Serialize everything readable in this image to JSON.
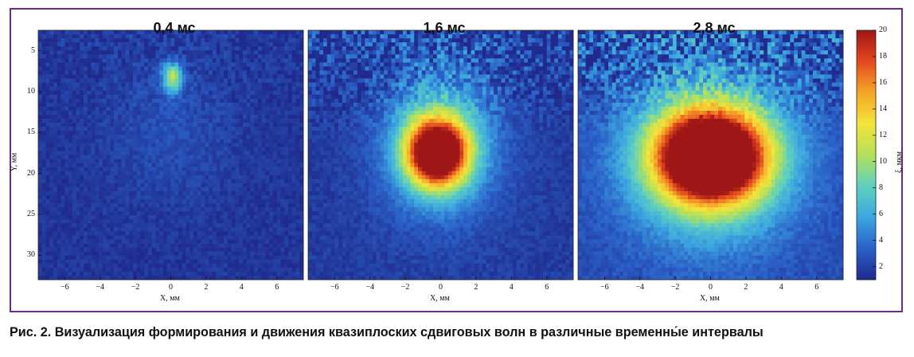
{
  "figure": {
    "caption": "Рис. 2. Визуализация формирования и движения квазиплоских сдвиговых волн в различные временны́е интервалы"
  },
  "chart_data": [
    {
      "type": "heatmap",
      "title": "0,4 мс",
      "xlabel": "X, мм",
      "ylabel": "Y, мм",
      "xlim": [
        -7.5,
        7.5
      ],
      "ylim": [
        33,
        2.5
      ],
      "x_ticks": [
        -6,
        -4,
        -2,
        0,
        2,
        4,
        6
      ],
      "y_ticks": [
        5,
        10,
        15,
        20,
        25,
        30
      ],
      "field": {
        "background": 1.5,
        "peak": 8.5,
        "center_x": 0.1,
        "center_y": 8.3,
        "spread_x": 0.55,
        "spread_y": 1.7,
        "halo": 1.2,
        "halo_spread_x": 3.5,
        "halo_spread_y": 9,
        "halo_center_y": 14
      }
    },
    {
      "type": "heatmap",
      "title": "1,6 мс",
      "xlabel": "X, мм",
      "xlim": [
        -7.5,
        7.5
      ],
      "ylim": [
        33,
        2.5
      ],
      "x_ticks": [
        -6,
        -4,
        -2,
        0,
        2,
        4,
        6
      ],
      "field": {
        "background": 1.8,
        "peak": 22,
        "center_x": -0.2,
        "center_y": 17.5,
        "spread_x": 1.6,
        "spread_y": 3.8,
        "halo": 6,
        "halo_spread_x": 3.2,
        "halo_spread_y": 9,
        "halo_center_y": 16
      }
    },
    {
      "type": "heatmap",
      "title": "2,8 мс",
      "xlabel": "X, мм",
      "xlim": [
        -7.5,
        7.5
      ],
      "ylim": [
        33,
        2.5
      ],
      "x_ticks": [
        -6,
        -4,
        -2,
        0,
        2,
        4,
        6
      ],
      "field": {
        "background": 2.5,
        "peak": 24,
        "center_x": 0,
        "center_y": 18,
        "spread_x": 2.8,
        "spread_y": 5,
        "halo": 8,
        "halo_spread_x": 4.5,
        "halo_spread_y": 10,
        "halo_center_y": 18
      }
    }
  ],
  "colorbar": {
    "label": "ξ, мкм",
    "range": [
      1,
      20
    ],
    "ticks": [
      2,
      4,
      6,
      8,
      10,
      12,
      14,
      16,
      18,
      20
    ],
    "colormap": [
      "#1f2a8c",
      "#2a5fc7",
      "#3ca7e0",
      "#5fd0c0",
      "#b4e05a",
      "#f4e43a",
      "#f6a628",
      "#e4481e",
      "#9e1616"
    ]
  }
}
